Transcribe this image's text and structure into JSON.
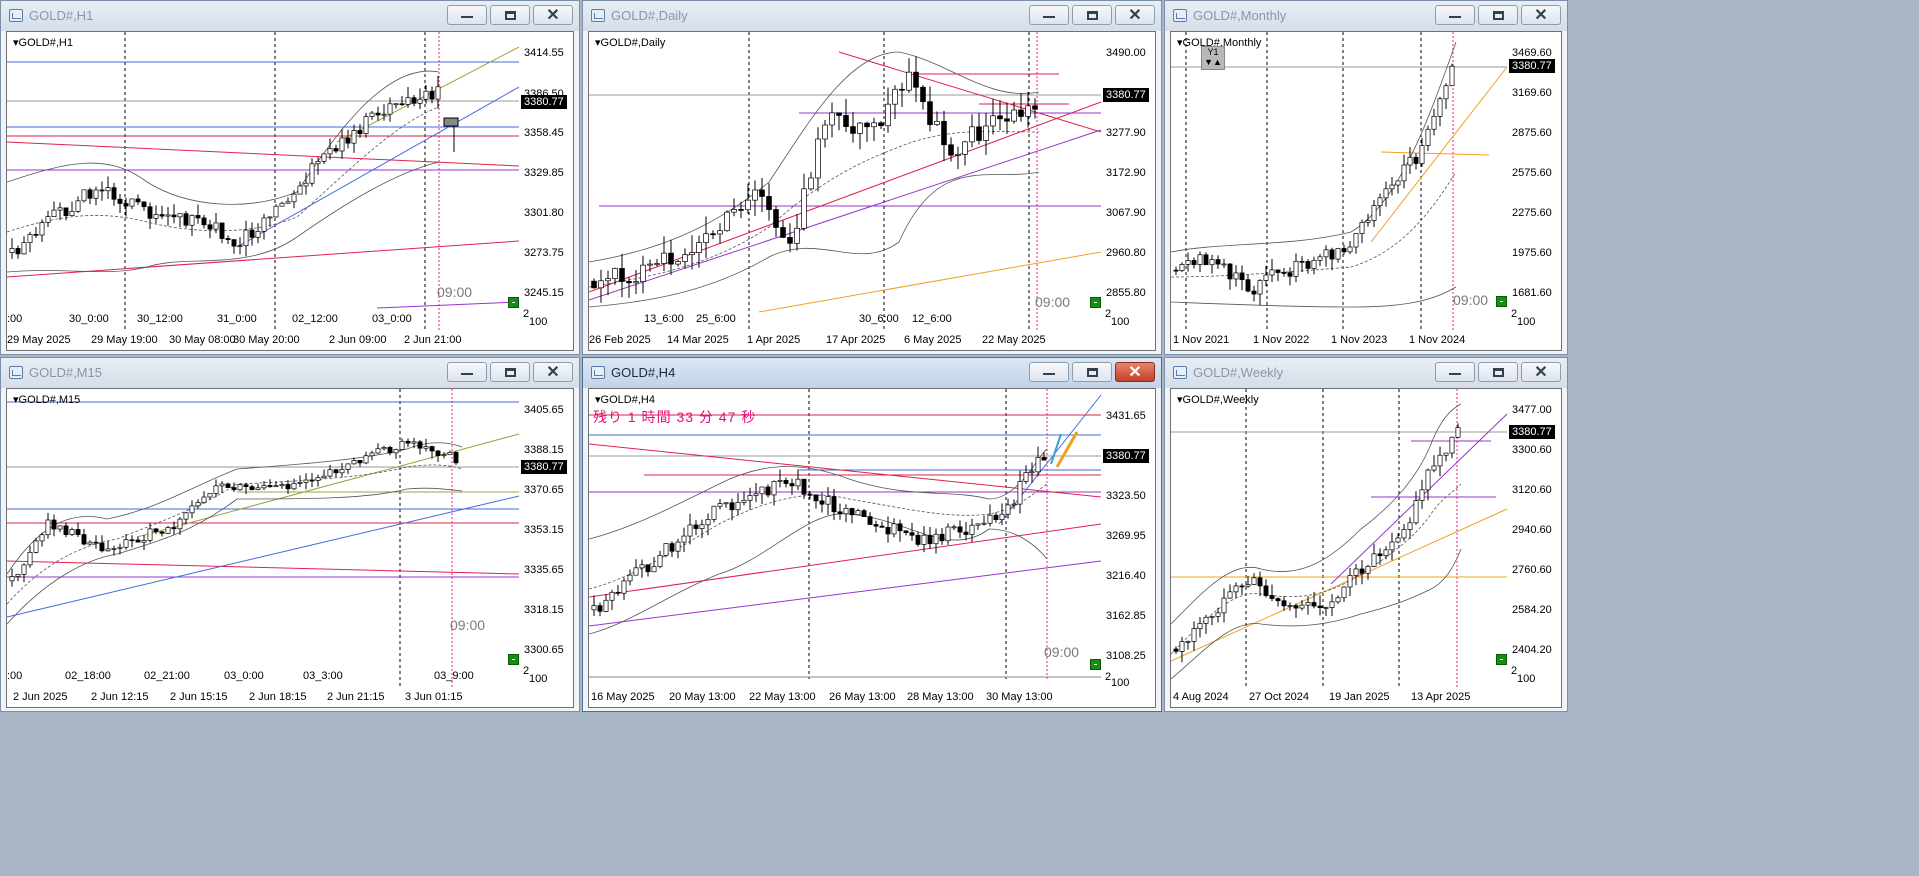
{
  "colors": {
    "bull": "#ffffff",
    "bear": "#000000",
    "up_line": "#4169e1",
    "red_line": "#e0204a",
    "magenta_line": "#9933cc",
    "orange_line": "#f0a020",
    "olive_line": "#a0a040",
    "pink_vline": "#ff1493"
  },
  "windows": {
    "h1": {
      "title": "GOLD#,H1",
      "symbol": "GOLD#,H1",
      "price_box": "3380.77",
      "price_ticks": [
        "3414.55",
        "3386.50",
        "3358.45",
        "3329.85",
        "3301.80",
        "3273.75",
        "3245.15"
      ],
      "time_ticks": [
        "29 May 2025",
        "29 May 19:00",
        "30 May 08:00",
        "30 May 20:00",
        "2 Jun 09:00",
        "2 Jun 21:00"
      ],
      "inner_ticks": [
        ":00",
        "30_0:00",
        "30_12:00",
        "31_0:00",
        "02_12:00",
        "03_0:00"
      ],
      "corner": "2",
      "corner2": "100",
      "time_label": "09:00"
    },
    "daily": {
      "title": "GOLD#,Daily",
      "symbol": "GOLD#,Daily",
      "price_box": "3380.77",
      "price_ticks": [
        "3490.00",
        "3277.90",
        "3172.90",
        "3067.90",
        "2960.80",
        "2855.80"
      ],
      "time_ticks": [
        "26 Feb 2025",
        "14 Mar 2025",
        "1 Apr 2025",
        "17 Apr 2025",
        "6 May 2025",
        "22 May 2025"
      ],
      "inner_ticks": [
        "13_6:00",
        "25_6:00",
        "30_6:00",
        "12_6:00"
      ],
      "corner": "2",
      "corner2": "100",
      "time_label": "09:00"
    },
    "monthly": {
      "title": "GOLD#,Monthly",
      "symbol": "GOLD#,Monthly",
      "price_box": "3380.77",
      "price_ticks": [
        "3469.60",
        "3169.60",
        "2875.60",
        "2575.60",
        "2275.60",
        "1975.60",
        "1681.60"
      ],
      "time_ticks": [
        "1 Nov 2021",
        "1 Nov 2022",
        "1 Nov 2023",
        "1 Nov 2024"
      ],
      "corner": "2",
      "corner2": "100",
      "time_label": "09:00",
      "tool_label": "Y1"
    },
    "m15": {
      "title": "GOLD#,M15",
      "symbol": "GOLD#,M15",
      "price_box": "3380.77",
      "price_ticks": [
        "3405.65",
        "3388.15",
        "3370.65",
        "3353.15",
        "3335.65",
        "3318.15",
        "3300.65"
      ],
      "time_ticks": [
        "2 Jun 2025",
        "2 Jun 12:15",
        "2 Jun 15:15",
        "2 Jun 18:15",
        "2 Jun 21:15",
        "3 Jun 01:15"
      ],
      "inner_ticks": [
        ":00",
        "02_18:00",
        "02_21:00",
        "03_0:00",
        "03_3:00",
        "03_9:00"
      ],
      "corner": "2",
      "corner2": "100",
      "time_label": "09:00"
    },
    "h4": {
      "title": "GOLD#,H4",
      "symbol": "GOLD#,H4",
      "price_box": "3380.77",
      "countdown": "残り 1 時間 33 分 47 秒",
      "price_ticks": [
        "3431.65",
        "3323.50",
        "3269.95",
        "3216.40",
        "3162.85",
        "3108.25"
      ],
      "time_ticks": [
        "16 May 2025",
        "20 May 13:00",
        "22 May 13:00",
        "26 May 13:00",
        "28 May 13:00",
        "30 May 13:00"
      ],
      "corner": "2",
      "corner2": "100",
      "time_label": "09:00"
    },
    "weekly": {
      "title": "GOLD#,Weekly",
      "symbol": "GOLD#,Weekly",
      "price_box": "3380.77",
      "price_ticks": [
        "3477.00",
        "3300.60",
        "3120.60",
        "2940.60",
        "2760.60",
        "2584.20",
        "2404.20"
      ],
      "time_ticks": [
        "4 Aug 2024",
        "27 Oct 2024",
        "19 Jan 2025",
        "13 Apr 2025"
      ],
      "corner": "2",
      "corner2": "100",
      "time_label": "09:00"
    }
  }
}
